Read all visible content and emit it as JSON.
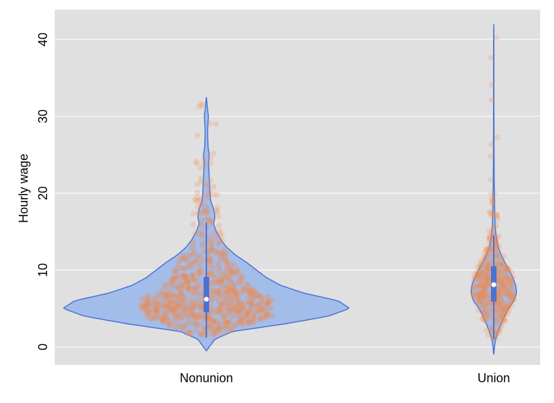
{
  "chart_data": {
    "type": "violin",
    "title": "",
    "xlabel": "",
    "ylabel": "Hourly wage",
    "ylim": [
      -2,
      43
    ],
    "yticks": [
      0,
      10,
      20,
      30,
      40
    ],
    "grid": true,
    "categories": [
      "Nonunion",
      "Union"
    ],
    "colors": {
      "panel_background": "#e0e0e0",
      "gridline": "#ffffff",
      "violin_fill": "#a3bdeb",
      "violin_outline": "#4a72d3",
      "box": "#4a72d3",
      "median": "#ffffff",
      "points": "#f08a4b"
    },
    "groups": [
      {
        "name": "Nonunion",
        "min": 1.2,
        "q1": 4.5,
        "median": 6.2,
        "q3": 9.1,
        "whisker_high": 16.2,
        "max": 32.5,
        "density_profile": [
          [
            -0.5,
            0.0
          ],
          [
            0,
            0.02
          ],
          [
            1,
            0.06
          ],
          [
            2,
            0.18
          ],
          [
            3,
            0.55
          ],
          [
            4,
            0.85
          ],
          [
            5,
            1.0
          ],
          [
            6,
            0.92
          ],
          [
            7,
            0.68
          ],
          [
            8,
            0.52
          ],
          [
            9,
            0.42
          ],
          [
            10,
            0.35
          ],
          [
            11,
            0.28
          ],
          [
            12,
            0.2
          ],
          [
            13,
            0.14
          ],
          [
            14,
            0.1
          ],
          [
            15,
            0.07
          ],
          [
            16,
            0.05
          ],
          [
            17,
            0.06
          ],
          [
            18,
            0.05
          ],
          [
            19,
            0.03
          ],
          [
            20,
            0.025
          ],
          [
            22,
            0.02
          ],
          [
            24,
            0.015
          ],
          [
            25,
            0.02
          ],
          [
            26,
            0.012
          ],
          [
            28,
            0.008
          ],
          [
            30,
            0.014
          ],
          [
            31,
            0.008
          ],
          [
            32.5,
            0.0
          ]
        ]
      },
      {
        "name": "Union",
        "min": 1.0,
        "q1": 5.9,
        "median": 8.1,
        "q3": 10.5,
        "whisker_high": 14.5,
        "max": 42.0,
        "density_profile": [
          [
            -1,
            0.0
          ],
          [
            0,
            0.02
          ],
          [
            1,
            0.05
          ],
          [
            2,
            0.12
          ],
          [
            3,
            0.2
          ],
          [
            4,
            0.3
          ],
          [
            5,
            0.4
          ],
          [
            6,
            0.55
          ],
          [
            7,
            0.62
          ],
          [
            8,
            0.6
          ],
          [
            9,
            0.52
          ],
          [
            10,
            0.42
          ],
          [
            11,
            0.3
          ],
          [
            12,
            0.2
          ],
          [
            13,
            0.12
          ],
          [
            14,
            0.08
          ],
          [
            15,
            0.05
          ],
          [
            16,
            0.035
          ],
          [
            18,
            0.025
          ],
          [
            20,
            0.018
          ],
          [
            22,
            0.012
          ],
          [
            25,
            0.008
          ],
          [
            28,
            0.006
          ],
          [
            32,
            0.004
          ],
          [
            36,
            0.003
          ],
          [
            40,
            0.003
          ],
          [
            42,
            0.0
          ]
        ]
      }
    ]
  }
}
